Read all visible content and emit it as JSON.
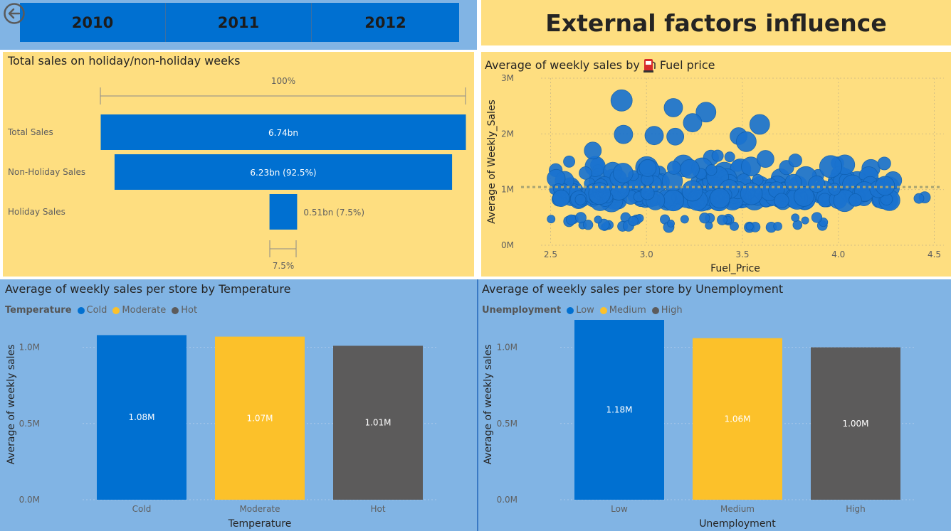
{
  "header": {
    "years": [
      "2010",
      "2011",
      "2012"
    ],
    "title": "External factors influence"
  },
  "funnel": {
    "title": "Total sales on holiday/non-holiday weeks",
    "top_label": "100%",
    "bottom_label": "7.5%",
    "chart_data": {
      "type": "bar",
      "categories": [
        "Total Sales",
        "Non-Holiday Sales",
        "Holiday Sales"
      ],
      "values": [
        6.74,
        6.23,
        0.51
      ],
      "value_labels": [
        "6.74bn",
        "6.23bn (92.5%)",
        "0.51bn (7.5%)"
      ],
      "unit": "bn"
    }
  },
  "scatter": {
    "title_prefix": "Average of weekly sales by",
    "title_suffix": "Fuel price",
    "chart_data": {
      "type": "scatter",
      "xlabel": "Fuel_Price",
      "ylabel": "Average of Weekly_Sales",
      "xlim": [
        2.45,
        4.55
      ],
      "ylim": [
        0,
        3000000
      ],
      "x_ticks": [
        "2.5",
        "3.0",
        "3.5",
        "4.0",
        "4.5"
      ],
      "y_ticks": [
        "0M",
        "1M",
        "2M",
        "3M"
      ],
      "average_line": 1046000,
      "grid": true,
      "color": "#1a73d0"
    }
  },
  "temp_chart": {
    "title": "Average of weekly sales per store by Temperature",
    "legend_title": "Temperature",
    "chart_data": {
      "type": "bar",
      "categories": [
        "Cold",
        "Moderate",
        "Hot"
      ],
      "values": [
        1080000,
        1070000,
        1010000
      ],
      "value_labels": [
        "1.08M",
        "1.07M",
        "1.01M"
      ],
      "colors": [
        "#0070d1",
        "#fcc12a",
        "#5c5b5b"
      ],
      "xlabel": "Temperature",
      "ylabel": "Average of weekly sales",
      "ylim": [
        0,
        1250000
      ],
      "y_ticks": [
        "0.0M",
        "0.5M",
        "1.0M"
      ]
    }
  },
  "unemp_chart": {
    "title": "Average of weekly sales per store by Unemployment",
    "legend_title": "Unemployment",
    "chart_data": {
      "type": "bar",
      "categories": [
        "Low",
        "Medium",
        "High"
      ],
      "values": [
        1180000,
        1060000,
        1000000
      ],
      "value_labels": [
        "1.18M",
        "1.06M",
        "1.00M"
      ],
      "colors": [
        "#0070d1",
        "#fcc12a",
        "#5c5b5b"
      ],
      "xlabel": "Unemployment",
      "ylabel": "Average of weekly sales",
      "ylim": [
        0,
        1250000
      ],
      "y_ticks": [
        "0.0M",
        "0.5M",
        "1.0M"
      ]
    }
  }
}
